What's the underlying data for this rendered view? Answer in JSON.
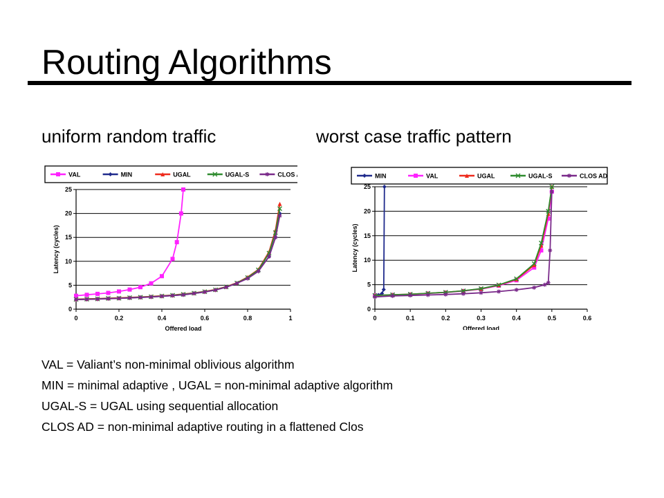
{
  "slide": {
    "title": "Routing Algorithms",
    "subtitle_left": "uniform random traffic",
    "subtitle_right": "worst case traffic pattern",
    "notes": [
      "VAL = Valiant’s non-minimal oblivious algorithm",
      "MIN = minimal adaptive , UGAL = non-minimal adaptive algorithm",
      "UGAL-S = UGAL using sequential allocation",
      "CLOS AD = non-minimal adaptive routing in a flattened Clos"
    ]
  },
  "chart_data": [
    {
      "type": "line",
      "title": "",
      "xlabel": "Offered load",
      "ylabel": "Latency (cycles)",
      "xlim": [
        0,
        1
      ],
      "ylim": [
        0,
        25
      ],
      "xticks": [
        0,
        0.2,
        0.4,
        0.6,
        0.8,
        1
      ],
      "xtick_labels": [
        "0",
        "0.2",
        "0.4",
        "0.6",
        "0.8",
        "1"
      ],
      "yticks": [
        0,
        5,
        10,
        15,
        20,
        25
      ],
      "ytick_labels": [
        "0",
        "5",
        "10",
        "15",
        "20",
        "25"
      ],
      "grid": "horizontal",
      "legend": "top",
      "series": [
        {
          "name": "VAL",
          "color": "#ff22ff",
          "marker": "square",
          "x": [
            0,
            0.05,
            0.1,
            0.15,
            0.2,
            0.25,
            0.3,
            0.35,
            0.4,
            0.45,
            0.47,
            0.49,
            0.5
          ],
          "y": [
            2.8,
            3.0,
            3.2,
            3.4,
            3.7,
            4.1,
            4.6,
            5.4,
            6.9,
            10.5,
            14,
            20,
            25
          ]
        },
        {
          "name": "MIN",
          "color": "#1f2a8c",
          "marker": "diamond",
          "x": [
            0,
            0.05,
            0.1,
            0.15,
            0.2,
            0.25,
            0.3,
            0.35,
            0.4,
            0.45,
            0.5,
            0.55,
            0.6,
            0.65,
            0.7,
            0.75,
            0.8,
            0.85,
            0.9,
            0.93,
            0.95
          ],
          "y": [
            2.0,
            2.1,
            2.15,
            2.2,
            2.3,
            2.35,
            2.45,
            2.55,
            2.7,
            2.85,
            3.0,
            3.3,
            3.6,
            4.0,
            4.6,
            5.4,
            6.5,
            8.0,
            11.0,
            15.0,
            20.0
          ]
        },
        {
          "name": "UGAL",
          "color": "#ee2a1c",
          "marker": "triangle",
          "x": [
            0,
            0.05,
            0.1,
            0.15,
            0.2,
            0.25,
            0.3,
            0.35,
            0.4,
            0.45,
            0.5,
            0.55,
            0.6,
            0.65,
            0.7,
            0.75,
            0.8,
            0.85,
            0.9,
            0.93,
            0.95
          ],
          "y": [
            2.1,
            2.15,
            2.2,
            2.3,
            2.35,
            2.45,
            2.55,
            2.65,
            2.8,
            2.95,
            3.15,
            3.4,
            3.7,
            4.1,
            4.7,
            5.5,
            6.7,
            8.3,
            12.0,
            16.5,
            22.0
          ]
        },
        {
          "name": "UGAL-S",
          "color": "#2e8b2e",
          "marker": "cross",
          "x": [
            0,
            0.05,
            0.1,
            0.15,
            0.2,
            0.25,
            0.3,
            0.35,
            0.4,
            0.45,
            0.5,
            0.55,
            0.6,
            0.65,
            0.7,
            0.75,
            0.8,
            0.85,
            0.9,
            0.93,
            0.95
          ],
          "y": [
            2.05,
            2.1,
            2.15,
            2.25,
            2.3,
            2.4,
            2.5,
            2.6,
            2.75,
            2.9,
            3.1,
            3.35,
            3.65,
            4.05,
            4.65,
            5.45,
            6.6,
            8.2,
            11.7,
            16.0,
            21.0
          ]
        },
        {
          "name": "CLOS AD",
          "color": "#7a2a8a",
          "marker": "star",
          "x": [
            0,
            0.05,
            0.1,
            0.15,
            0.2,
            0.25,
            0.3,
            0.35,
            0.4,
            0.45,
            0.5,
            0.55,
            0.6,
            0.65,
            0.7,
            0.75,
            0.8,
            0.85,
            0.9,
            0.93,
            0.95
          ],
          "y": [
            2.0,
            2.05,
            2.1,
            2.2,
            2.25,
            2.35,
            2.45,
            2.55,
            2.7,
            2.85,
            3.0,
            3.3,
            3.6,
            4.0,
            4.6,
            5.4,
            6.4,
            7.9,
            11.0,
            15.0,
            19.5
          ]
        }
      ]
    },
    {
      "type": "line",
      "title": "",
      "xlabel": "Offered load",
      "ylabel": "Latency (cycles)",
      "xlim": [
        0,
        0.6
      ],
      "ylim": [
        0,
        25
      ],
      "xticks": [
        0,
        0.1,
        0.2,
        0.3,
        0.4,
        0.5,
        0.6
      ],
      "xtick_labels": [
        "0",
        "0.1",
        "0.2",
        "0.3",
        "0.4",
        "0.5",
        "0.6"
      ],
      "yticks": [
        0,
        5,
        10,
        15,
        20,
        25
      ],
      "ytick_labels": [
        "0",
        "5",
        "10",
        "15",
        "20",
        "25"
      ],
      "grid": "horizontal",
      "legend": "top",
      "series": [
        {
          "name": "MIN",
          "color": "#1f2a8c",
          "marker": "diamond",
          "x": [
            0,
            0.01,
            0.02,
            0.025,
            0.027
          ],
          "y": [
            2.8,
            2.9,
            3.2,
            4.0,
            25
          ]
        },
        {
          "name": "VAL",
          "color": "#ff22ff",
          "marker": "square",
          "x": [
            0,
            0.05,
            0.1,
            0.15,
            0.2,
            0.25,
            0.3,
            0.35,
            0.4,
            0.45,
            0.47,
            0.49,
            0.5
          ],
          "y": [
            2.8,
            2.9,
            3.0,
            3.2,
            3.4,
            3.7,
            4.1,
            4.8,
            5.9,
            8.5,
            12.0,
            18.5,
            24.0
          ]
        },
        {
          "name": "UGAL",
          "color": "#ee2a1c",
          "marker": "triangle",
          "x": [
            0,
            0.05,
            0.1,
            0.15,
            0.2,
            0.25,
            0.3,
            0.35,
            0.4,
            0.45,
            0.47,
            0.49,
            0.5
          ],
          "y": [
            2.8,
            2.95,
            3.05,
            3.25,
            3.45,
            3.75,
            4.15,
            4.9,
            6.1,
            9.0,
            13.0,
            19.5,
            25.0
          ]
        },
        {
          "name": "UGAL-S",
          "color": "#2e8b2e",
          "marker": "cross",
          "x": [
            0,
            0.05,
            0.1,
            0.15,
            0.2,
            0.25,
            0.3,
            0.35,
            0.4,
            0.45,
            0.47,
            0.49,
            0.5
          ],
          "y": [
            2.8,
            2.95,
            3.05,
            3.25,
            3.45,
            3.75,
            4.2,
            4.95,
            6.2,
            9.3,
            13.5,
            20.0,
            25.0
          ]
        },
        {
          "name": "CLOS AD",
          "color": "#7a2a8a",
          "marker": "star",
          "x": [
            0,
            0.05,
            0.1,
            0.15,
            0.2,
            0.25,
            0.3,
            0.35,
            0.4,
            0.45,
            0.48,
            0.49,
            0.495,
            0.5
          ],
          "y": [
            2.5,
            2.7,
            2.8,
            2.9,
            3.0,
            3.15,
            3.35,
            3.6,
            3.95,
            4.4,
            5.0,
            5.4,
            12.0,
            24.0
          ]
        }
      ]
    }
  ]
}
